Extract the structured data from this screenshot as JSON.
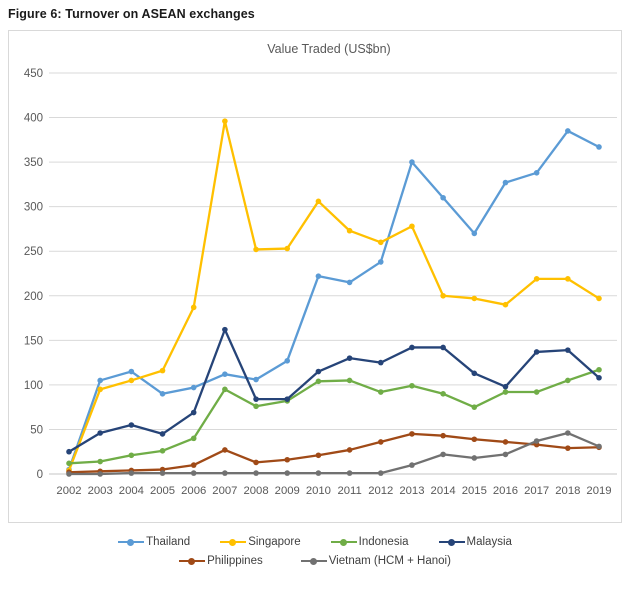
{
  "page": {
    "heading": "Figure 6: Turnover on ASEAN exchanges"
  },
  "chart_data": {
    "type": "line",
    "title": "Value Traded (US$bn)",
    "categories": [
      "2002",
      "2003",
      "2004",
      "2005",
      "2006",
      "2007",
      "2008",
      "2009",
      "2010",
      "2011",
      "2012",
      "2013",
      "2014",
      "2015",
      "2016",
      "2017",
      "2018",
      "2019"
    ],
    "ylim": [
      0,
      450
    ],
    "ytick_step": 50,
    "grid": "horizontal",
    "legend_position": "bottom",
    "axis_text_color": "#595959",
    "grid_color": "#d9d9d9",
    "series": [
      {
        "name": "Thailand",
        "color": "#5B9BD5",
        "values": [
          5,
          105,
          115,
          90,
          97,
          112,
          106,
          127,
          222,
          215,
          238,
          350,
          310,
          270,
          327,
          338,
          385,
          367
        ]
      },
      {
        "name": "Singapore",
        "color": "#FFC000",
        "values": [
          4,
          95,
          105,
          116,
          187,
          396,
          252,
          253,
          306,
          273,
          260,
          278,
          200,
          197,
          190,
          219,
          219,
          197
        ]
      },
      {
        "name": "Indonesia",
        "color": "#70AD47",
        "values": [
          12,
          14,
          21,
          26,
          40,
          95,
          76,
          82,
          104,
          105,
          92,
          99,
          90,
          75,
          92,
          92,
          105,
          117
        ]
      },
      {
        "name": "Malaysia",
        "color": "#264478",
        "values": [
          25,
          46,
          55,
          45,
          69,
          162,
          84,
          84,
          115,
          130,
          125,
          142,
          142,
          113,
          98,
          137,
          139,
          108
        ]
      },
      {
        "name": "Philippines",
        "color": "#A04A17",
        "values": [
          2,
          3,
          4,
          5,
          10,
          27,
          13,
          16,
          21,
          27,
          36,
          45,
          43,
          39,
          36,
          33,
          29,
          30
        ]
      },
      {
        "name": "Vietnam (HCM  + Hanoi)",
        "color": "#717171",
        "values": [
          0,
          0,
          1,
          1,
          1,
          1,
          1,
          1,
          1,
          1,
          1,
          10,
          22,
          18,
          22,
          37,
          46,
          31
        ]
      }
    ]
  }
}
